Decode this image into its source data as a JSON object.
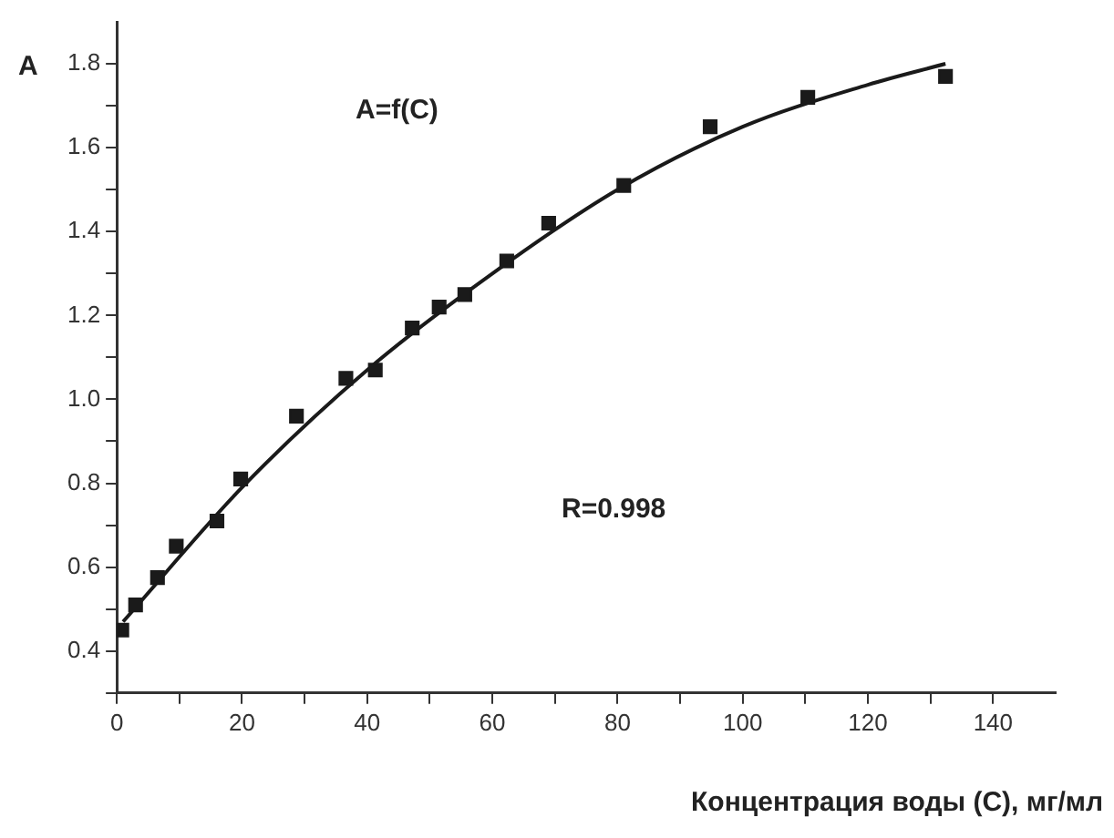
{
  "chart_data": {
    "type": "scatter",
    "ylabel": "A",
    "xlabel": "Концентрация воды (C), мг/мл",
    "annotations": [
      "A=f(C)",
      "R=0.998"
    ],
    "xlim": [
      0,
      150
    ],
    "ylim": [
      0.3,
      1.9
    ],
    "xticks": [
      0,
      {
        "value": 10,
        "label": null
      },
      20,
      {
        "value": 30,
        "label": null
      },
      40,
      {
        "value": 50,
        "label": null
      },
      60,
      {
        "value": 70,
        "label": null
      },
      80,
      {
        "value": 90,
        "label": null
      },
      100,
      {
        "value": 110,
        "label": null
      },
      120,
      {
        "value": 130,
        "label": null
      },
      140
    ],
    "yticks": [
      {
        "value": 0.3,
        "label": null
      },
      0.4,
      {
        "value": 0.5,
        "label": null
      },
      0.6,
      {
        "value": 0.7,
        "label": null
      },
      0.8,
      {
        "value": 0.9,
        "label": null
      },
      {
        "value": 1,
        "label": "1.0"
      },
      {
        "value": 1.1,
        "label": null
      },
      1.2,
      {
        "value": 1.3,
        "label": null
      },
      1.4,
      {
        "value": 1.5,
        "label": null
      },
      1.6,
      {
        "value": 1.7,
        "label": null
      },
      1.8
    ],
    "grid": false,
    "legend": false,
    "series": [
      {
        "marker": "square",
        "color": "#1a1a1a",
        "x": [
          0.8,
          3,
          6.5,
          9.5,
          16,
          19.8,
          28.7,
          36.6,
          41.3,
          47.2,
          51.5,
          55.6,
          62.3,
          69,
          81,
          94.8,
          110.4,
          132.4
        ],
        "values": [
          0.45,
          0.51,
          0.575,
          0.65,
          0.71,
          0.81,
          0.96,
          1.05,
          1.07,
          1.17,
          1.22,
          1.25,
          1.33,
          1.42,
          1.51,
          1.65,
          1.72,
          1.77
        ]
      },
      {
        "type": "line",
        "marker": "none",
        "line_style": "solid",
        "color": "#1a1a1a",
        "x": [
          1,
          20,
          40,
          60,
          80,
          100,
          120,
          132.4
        ],
        "values": [
          0.47,
          0.79,
          1.07,
          1.3,
          1.5,
          1.65,
          1.75,
          1.8
        ]
      }
    ]
  }
}
